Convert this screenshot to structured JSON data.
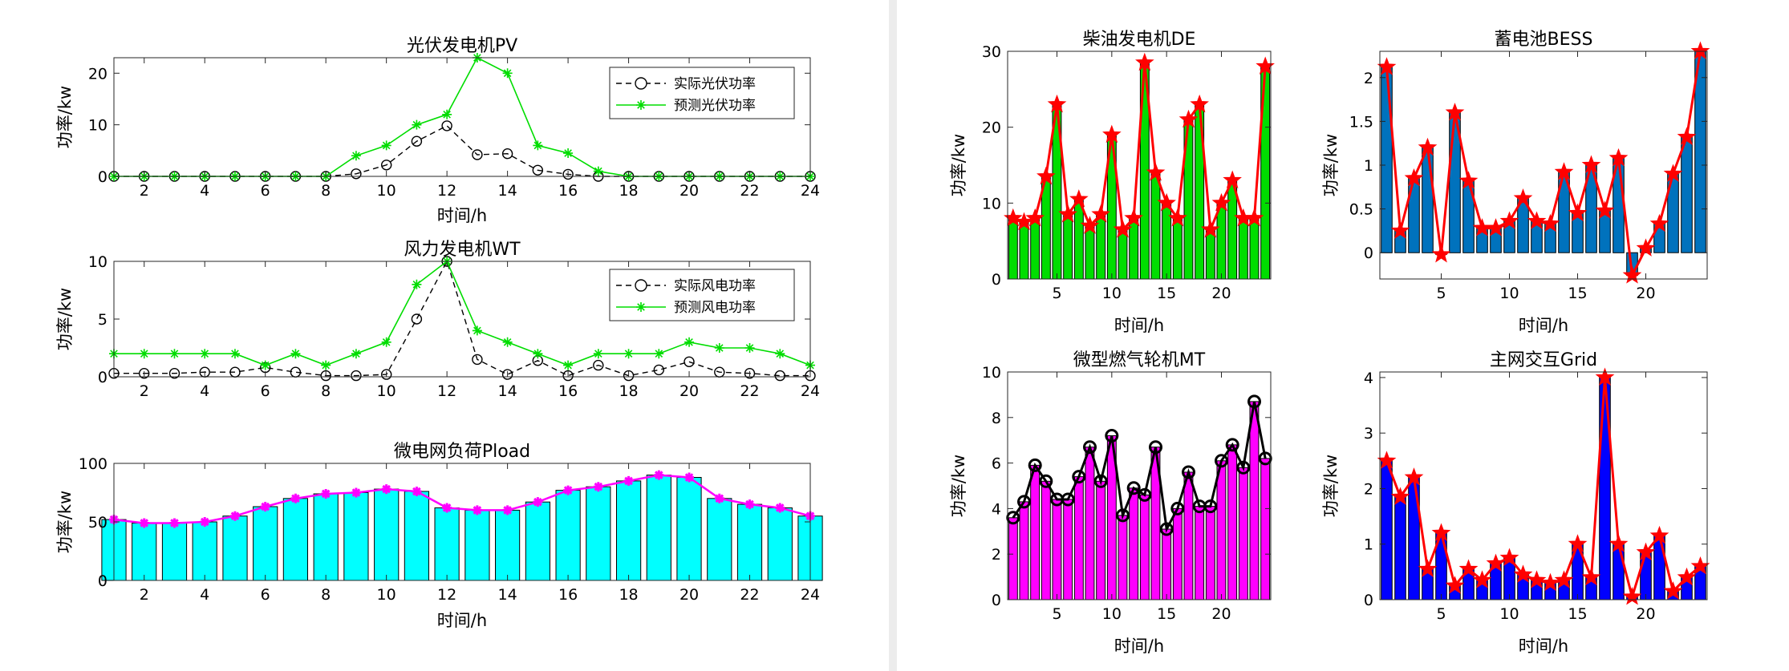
{
  "chart_data": [
    {
      "id": "pv",
      "type": "line",
      "title": "光伏发电机PV",
      "xlabel": "时间/h",
      "ylabel": "功率/kw",
      "xlim": [
        1,
        24
      ],
      "ylim": [
        0,
        23
      ],
      "xticks": [
        2,
        4,
        6,
        8,
        10,
        12,
        14,
        16,
        18,
        20,
        22,
        24
      ],
      "yticks": [
        0,
        10,
        20
      ],
      "x": [
        1,
        2,
        3,
        4,
        5,
        6,
        7,
        8,
        9,
        10,
        11,
        12,
        13,
        14,
        15,
        16,
        17,
        18,
        19,
        20,
        21,
        22,
        23,
        24
      ],
      "legend": "top-right",
      "grid": false,
      "series": [
        {
          "name": "实际光伏功率",
          "color": "#000000",
          "style": "dashed",
          "marker": "circle",
          "values": [
            0,
            0,
            0,
            0,
            0,
            0,
            0,
            0,
            0.5,
            2.2,
            6.8,
            9.8,
            4.2,
            4.4,
            1.2,
            0.4,
            0,
            0,
            0,
            0,
            0,
            0,
            0,
            0
          ]
        },
        {
          "name": "预测光伏功率",
          "color": "#00dd00",
          "style": "solid",
          "marker": "star",
          "values": [
            0,
            0,
            0,
            0,
            0,
            0,
            0,
            0,
            4,
            6,
            10,
            12,
            23,
            20,
            6,
            4.5,
            1,
            0,
            0,
            0,
            0,
            0,
            0,
            0
          ]
        }
      ]
    },
    {
      "id": "wt",
      "type": "line",
      "title": "风力发电机WT",
      "xlabel": "",
      "ylabel": "功率/kw",
      "xlim": [
        1,
        24
      ],
      "ylim": [
        0,
        10
      ],
      "xticks": [
        2,
        4,
        6,
        8,
        10,
        12,
        14,
        16,
        18,
        20,
        22,
        24
      ],
      "yticks": [
        0,
        5,
        10
      ],
      "x": [
        1,
        2,
        3,
        4,
        5,
        6,
        7,
        8,
        9,
        10,
        11,
        12,
        13,
        14,
        15,
        16,
        17,
        18,
        19,
        20,
        21,
        22,
        23,
        24
      ],
      "legend": "top-right",
      "grid": false,
      "series": [
        {
          "name": "实际风电功率",
          "color": "#000000",
          "style": "dashed",
          "marker": "circle",
          "values": [
            0.3,
            0.3,
            0.3,
            0.4,
            0.4,
            0.8,
            0.4,
            0.1,
            0.1,
            0.2,
            5,
            10,
            1.5,
            0.2,
            1.4,
            0.1,
            1,
            0.1,
            0.6,
            1.3,
            0.4,
            0.3,
            0.1,
            0.1
          ]
        },
        {
          "name": "预测风电功率",
          "color": "#00dd00",
          "style": "solid",
          "marker": "star",
          "values": [
            2,
            2,
            2,
            2,
            2,
            1,
            2,
            1,
            2,
            3,
            8,
            10,
            4,
            3,
            2,
            1,
            2,
            2,
            2,
            3,
            2.5,
            2.5,
            2,
            1
          ]
        }
      ]
    },
    {
      "id": "load",
      "type": "bar",
      "title": "微电网负荷Pload",
      "xlabel": "时间/h",
      "ylabel": "功率/kw",
      "xlim": [
        1,
        24
      ],
      "ylim": [
        0,
        100
      ],
      "xticks": [
        2,
        4,
        6,
        8,
        10,
        12,
        14,
        16,
        18,
        20,
        22,
        24
      ],
      "yticks": [
        0,
        50,
        100
      ],
      "x": [
        1,
        2,
        3,
        4,
        5,
        6,
        7,
        8,
        9,
        10,
        11,
        12,
        13,
        14,
        15,
        16,
        17,
        18,
        19,
        20,
        21,
        22,
        23,
        24
      ],
      "grid": false,
      "series": [
        {
          "kind": "bar",
          "color": "#00ffff",
          "values": [
            52,
            49,
            49,
            50,
            55,
            63,
            70,
            74,
            75,
            78,
            76,
            62,
            60,
            60,
            67,
            77,
            80,
            85,
            90,
            88,
            70,
            65,
            62,
            55
          ]
        },
        {
          "kind": "line",
          "color": "#ff00ff",
          "marker": "star",
          "values": [
            52,
            49,
            49,
            50,
            55,
            63,
            70,
            74,
            75,
            78,
            76,
            62,
            60,
            60,
            67,
            77,
            80,
            85,
            90,
            88,
            70,
            65,
            62,
            55
          ]
        }
      ]
    },
    {
      "id": "de",
      "type": "bar",
      "title": "柴油发电机DE",
      "xlabel": "时间/h",
      "ylabel": "功率/kw",
      "xlim": [
        0.5,
        24.5
      ],
      "ylim": [
        0,
        30
      ],
      "xticks": [
        5,
        10,
        15,
        20
      ],
      "yticks": [
        0,
        10,
        20,
        30
      ],
      "x": [
        1,
        2,
        3,
        4,
        5,
        6,
        7,
        8,
        9,
        10,
        11,
        12,
        13,
        14,
        15,
        16,
        17,
        18,
        19,
        20,
        21,
        22,
        23,
        24
      ],
      "grid": false,
      "series": [
        {
          "kind": "bar",
          "color": "#00dd00",
          "values": [
            8,
            7.5,
            8,
            13.5,
            23,
            8.5,
            10.5,
            7,
            8.5,
            19,
            6.5,
            8,
            28.5,
            14,
            10,
            8,
            21,
            23,
            6.5,
            10,
            13,
            8,
            8,
            28
          ]
        },
        {
          "kind": "line",
          "color": "#ff0000",
          "marker": "star",
          "values": [
            8,
            7.5,
            8,
            13.5,
            23,
            8.5,
            10.5,
            7,
            8.5,
            19,
            6.5,
            8,
            28.5,
            14,
            10,
            8,
            21,
            23,
            6.5,
            10,
            13,
            8,
            8,
            28
          ]
        }
      ]
    },
    {
      "id": "bess",
      "type": "bar",
      "title": "蓄电池BESS",
      "xlabel": "时间/h",
      "ylabel": "功率/kw",
      "xlim": [
        0.5,
        24.5
      ],
      "ylim": [
        -0.3,
        2.3
      ],
      "xticks": [
        5,
        10,
        15,
        20
      ],
      "yticks": [
        0,
        0.5,
        1,
        1.5,
        2
      ],
      "x": [
        1,
        2,
        3,
        4,
        5,
        6,
        7,
        8,
        9,
        10,
        11,
        12,
        13,
        14,
        15,
        16,
        17,
        18,
        19,
        20,
        21,
        22,
        23,
        24
      ],
      "grid": false,
      "series": [
        {
          "kind": "bar",
          "color": "#0072bd",
          "values": [
            2.12,
            0.25,
            0.85,
            1.2,
            -0.02,
            1.6,
            0.82,
            0.28,
            0.28,
            0.36,
            0.62,
            0.36,
            0.33,
            0.92,
            0.45,
            1.0,
            0.48,
            1.08,
            -0.26,
            0.05,
            0.33,
            0.9,
            1.32,
            2.3
          ]
        },
        {
          "kind": "line",
          "color": "#ff0000",
          "marker": "star",
          "values": [
            2.12,
            0.25,
            0.85,
            1.2,
            -0.02,
            1.6,
            0.82,
            0.28,
            0.28,
            0.36,
            0.62,
            0.36,
            0.33,
            0.92,
            0.45,
            1.0,
            0.48,
            1.08,
            -0.26,
            0.05,
            0.33,
            0.9,
            1.32,
            2.3
          ]
        }
      ]
    },
    {
      "id": "mt",
      "type": "bar",
      "title": "微型燃气轮机MT",
      "xlabel": "时间/h",
      "ylabel": "功率/kw",
      "xlim": [
        0.5,
        24.5
      ],
      "ylim": [
        0,
        10
      ],
      "xticks": [
        5,
        10,
        15,
        20
      ],
      "yticks": [
        0,
        2,
        4,
        6,
        8,
        10
      ],
      "x": [
        1,
        2,
        3,
        4,
        5,
        6,
        7,
        8,
        9,
        10,
        11,
        12,
        13,
        14,
        15,
        16,
        17,
        18,
        19,
        20,
        21,
        22,
        23,
        24
      ],
      "grid": false,
      "series": [
        {
          "kind": "bar",
          "color": "#ff00ff",
          "values": [
            3.6,
            4.3,
            5.9,
            5.2,
            4.4,
            4.4,
            5.4,
            6.7,
            5.2,
            7.2,
            3.7,
            4.9,
            4.6,
            6.7,
            3.1,
            4.0,
            5.6,
            4.1,
            4.1,
            6.1,
            6.8,
            5.8,
            8.7,
            6.2
          ]
        },
        {
          "kind": "line",
          "color": "#000000",
          "marker": "circle",
          "values": [
            3.6,
            4.3,
            5.9,
            5.2,
            4.4,
            4.4,
            5.4,
            6.7,
            5.2,
            7.2,
            3.7,
            4.9,
            4.6,
            6.7,
            3.1,
            4.0,
            5.6,
            4.1,
            4.1,
            6.1,
            6.8,
            5.8,
            8.7,
            6.2
          ]
        }
      ]
    },
    {
      "id": "grid",
      "type": "bar",
      "title": "主网交互Grid",
      "xlabel": "时间/h",
      "ylabel": "功率/kw",
      "xlim": [
        0.5,
        24.5
      ],
      "ylim": [
        0,
        4.1
      ],
      "xticks": [
        5,
        10,
        15,
        20
      ],
      "yticks": [
        0,
        1,
        2,
        3,
        4
      ],
      "x": [
        1,
        2,
        3,
        4,
        5,
        6,
        7,
        8,
        9,
        10,
        11,
        12,
        13,
        14,
        15,
        16,
        17,
        18,
        19,
        20,
        21,
        22,
        23,
        24
      ],
      "grid": false,
      "series": [
        {
          "kind": "bar",
          "color": "#0000ff",
          "values": [
            2.5,
            1.85,
            2.2,
            0.55,
            1.2,
            0.25,
            0.55,
            0.35,
            0.65,
            0.75,
            0.45,
            0.35,
            0.3,
            0.35,
            1.0,
            0.4,
            4.0,
            1.0,
            0.05,
            0.85,
            1.15,
            0.15,
            0.4,
            0.6
          ]
        },
        {
          "kind": "line",
          "color": "#ff0000",
          "marker": "star",
          "values": [
            2.5,
            1.85,
            2.2,
            0.55,
            1.2,
            0.25,
            0.55,
            0.35,
            0.65,
            0.75,
            0.45,
            0.35,
            0.3,
            0.35,
            1.0,
            0.4,
            4.0,
            1.0,
            0.05,
            0.85,
            1.15,
            0.15,
            0.4,
            0.6
          ]
        }
      ]
    }
  ]
}
